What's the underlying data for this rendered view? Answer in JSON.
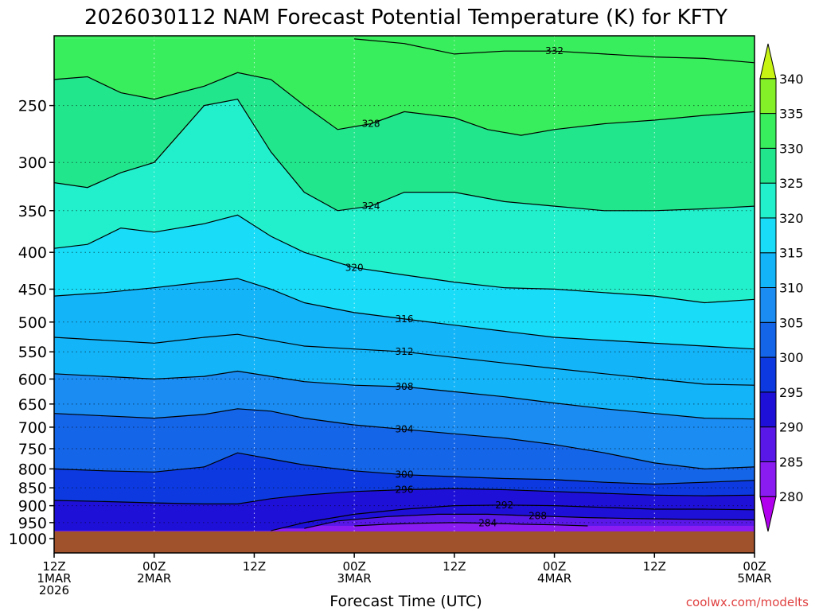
{
  "chart_data": {
    "type": "heatmap",
    "title": "2026030112 NAM Forecast Potential Temperature (K) for KFTY",
    "xlabel": "Forecast Time (UTC)",
    "ylabel": "",
    "credit": "coolwx.com/modelts",
    "y_scale": "log",
    "ylim": [
      1000,
      200
    ],
    "y_ticks": [
      250,
      300,
      350,
      400,
      450,
      500,
      550,
      600,
      650,
      700,
      750,
      800,
      850,
      900,
      950,
      1000
    ],
    "xlim": [
      "2026-03-01 12Z",
      "2026-03-05 00Z"
    ],
    "x_ticks": [
      {
        "hour": 0,
        "line1": "12Z",
        "line2": "1MAR",
        "line3": "2026"
      },
      {
        "hour": 12,
        "line1": "00Z",
        "line2": "2MAR",
        "line3": ""
      },
      {
        "hour": 24,
        "line1": "12Z",
        "line2": "",
        "line3": ""
      },
      {
        "hour": 36,
        "line1": "00Z",
        "line2": "3MAR",
        "line3": ""
      },
      {
        "hour": 48,
        "line1": "12Z",
        "line2": "",
        "line3": ""
      },
      {
        "hour": 60,
        "line1": "00Z",
        "line2": "4MAR",
        "line3": ""
      },
      {
        "hour": 72,
        "line1": "12Z",
        "line2": "",
        "line3": ""
      },
      {
        "hour": 84,
        "line1": "00Z",
        "line2": "5MAR",
        "line3": ""
      }
    ],
    "colorbar": {
      "levels": [
        280,
        285,
        290,
        295,
        300,
        305,
        310,
        315,
        320,
        325,
        330,
        335,
        340
      ],
      "colors": [
        "#b000ee",
        "#8a1cf2",
        "#5a18e8",
        "#1f10d8",
        "#0c3ae0",
        "#1565e8",
        "#1a8cf2",
        "#14b4f8",
        "#18dcf8",
        "#22f0cc",
        "#22e68c",
        "#38ee5c",
        "#84f028",
        "#c8f414"
      ]
    },
    "grid": true,
    "contours": [
      {
        "level": 284,
        "label": "284",
        "points": [
          [
            36,
            960
          ],
          [
            40,
            955
          ],
          [
            44,
            952
          ],
          [
            48,
            950
          ],
          [
            52,
            952
          ],
          [
            56,
            955
          ],
          [
            60,
            957
          ],
          [
            64,
            960
          ]
        ]
      },
      {
        "level": 288,
        "label": "288",
        "points": [
          [
            30,
            968
          ],
          [
            34,
            945
          ],
          [
            40,
            932
          ],
          [
            46,
            925
          ],
          [
            52,
            925
          ],
          [
            58,
            930
          ],
          [
            64,
            935
          ],
          [
            70,
            938
          ],
          [
            76,
            940
          ],
          [
            84,
            942
          ]
        ]
      },
      {
        "level": 292,
        "label": "292",
        "points": [
          [
            26,
            975
          ],
          [
            30,
            950
          ],
          [
            36,
            925
          ],
          [
            42,
            910
          ],
          [
            48,
            900
          ],
          [
            54,
            898
          ],
          [
            60,
            900
          ],
          [
            66,
            905
          ],
          [
            72,
            910
          ],
          [
            78,
            910
          ],
          [
            84,
            912
          ]
        ]
      },
      {
        "level": 296,
        "label": "296",
        "points": [
          [
            0,
            885
          ],
          [
            6,
            888
          ],
          [
            12,
            892
          ],
          [
            18,
            895
          ],
          [
            22,
            895
          ],
          [
            26,
            880
          ],
          [
            30,
            870
          ],
          [
            36,
            860
          ],
          [
            42,
            855
          ],
          [
            48,
            852
          ],
          [
            54,
            855
          ],
          [
            60,
            860
          ],
          [
            66,
            865
          ],
          [
            72,
            870
          ],
          [
            78,
            872
          ],
          [
            84,
            870
          ]
        ]
      },
      {
        "level": 300,
        "label": "300",
        "points": [
          [
            0,
            800
          ],
          [
            6,
            805
          ],
          [
            12,
            808
          ],
          [
            18,
            795
          ],
          [
            22,
            760
          ],
          [
            26,
            775
          ],
          [
            30,
            790
          ],
          [
            36,
            805
          ],
          [
            42,
            815
          ],
          [
            48,
            820
          ],
          [
            54,
            825
          ],
          [
            60,
            828
          ],
          [
            66,
            835
          ],
          [
            72,
            840
          ],
          [
            78,
            835
          ],
          [
            84,
            830
          ]
        ]
      },
      {
        "level": 304,
        "label": "304",
        "points": [
          [
            0,
            670
          ],
          [
            6,
            675
          ],
          [
            12,
            680
          ],
          [
            18,
            672
          ],
          [
            22,
            660
          ],
          [
            26,
            665
          ],
          [
            30,
            680
          ],
          [
            36,
            695
          ],
          [
            42,
            705
          ],
          [
            48,
            715
          ],
          [
            54,
            725
          ],
          [
            60,
            740
          ],
          [
            66,
            760
          ],
          [
            72,
            785
          ],
          [
            78,
            800
          ],
          [
            84,
            795
          ]
        ]
      },
      {
        "level": 308,
        "label": "308",
        "points": [
          [
            0,
            590
          ],
          [
            6,
            595
          ],
          [
            12,
            600
          ],
          [
            18,
            595
          ],
          [
            22,
            585
          ],
          [
            26,
            595
          ],
          [
            30,
            605
          ],
          [
            36,
            612
          ],
          [
            42,
            615
          ],
          [
            48,
            625
          ],
          [
            54,
            635
          ],
          [
            60,
            648
          ],
          [
            66,
            660
          ],
          [
            72,
            670
          ],
          [
            78,
            680
          ],
          [
            84,
            682
          ]
        ]
      },
      {
        "level": 312,
        "label": "312",
        "points": [
          [
            0,
            525
          ],
          [
            6,
            530
          ],
          [
            12,
            535
          ],
          [
            18,
            525
          ],
          [
            22,
            520
          ],
          [
            26,
            530
          ],
          [
            30,
            540
          ],
          [
            36,
            545
          ],
          [
            42,
            550
          ],
          [
            48,
            560
          ],
          [
            54,
            570
          ],
          [
            60,
            580
          ],
          [
            66,
            590
          ],
          [
            72,
            600
          ],
          [
            78,
            610
          ],
          [
            84,
            612
          ]
        ]
      },
      {
        "level": 316,
        "label": "316",
        "points": [
          [
            0,
            460
          ],
          [
            6,
            455
          ],
          [
            12,
            448
          ],
          [
            18,
            440
          ],
          [
            22,
            435
          ],
          [
            26,
            450
          ],
          [
            30,
            470
          ],
          [
            36,
            485
          ],
          [
            42,
            495
          ],
          [
            48,
            505
          ],
          [
            54,
            515
          ],
          [
            60,
            525
          ],
          [
            66,
            530
          ],
          [
            72,
            535
          ],
          [
            78,
            540
          ],
          [
            84,
            545
          ]
        ]
      },
      {
        "level": 320,
        "label": "320",
        "points": [
          [
            0,
            395
          ],
          [
            4,
            390
          ],
          [
            8,
            370
          ],
          [
            12,
            375
          ],
          [
            18,
            365
          ],
          [
            22,
            355
          ],
          [
            26,
            380
          ],
          [
            30,
            400
          ],
          [
            36,
            420
          ],
          [
            42,
            430
          ],
          [
            48,
            440
          ],
          [
            54,
            448
          ],
          [
            60,
            450
          ],
          [
            66,
            455
          ],
          [
            72,
            460
          ],
          [
            78,
            470
          ],
          [
            84,
            465
          ]
        ]
      },
      {
        "level": 324,
        "label": "324",
        "points": [
          [
            0,
            320
          ],
          [
            4,
            325
          ],
          [
            8,
            310
          ],
          [
            12,
            300
          ],
          [
            18,
            250
          ],
          [
            22,
            245
          ],
          [
            26,
            290
          ],
          [
            30,
            330
          ],
          [
            34,
            350
          ],
          [
            38,
            345
          ],
          [
            42,
            330
          ],
          [
            48,
            330
          ],
          [
            54,
            340
          ],
          [
            60,
            345
          ],
          [
            66,
            350
          ],
          [
            72,
            350
          ],
          [
            78,
            348
          ],
          [
            84,
            345
          ]
        ]
      },
      {
        "level": 328,
        "label": "328",
        "points": [
          [
            0,
            230
          ],
          [
            4,
            228
          ],
          [
            8,
            240
          ],
          [
            12,
            245
          ],
          [
            18,
            235
          ],
          [
            22,
            225
          ],
          [
            26,
            230
          ],
          [
            30,
            250
          ],
          [
            34,
            270
          ],
          [
            38,
            265
          ],
          [
            42,
            255
          ],
          [
            48,
            260
          ],
          [
            52,
            270
          ],
          [
            56,
            275
          ],
          [
            60,
            270
          ],
          [
            66,
            265
          ],
          [
            72,
            262
          ],
          [
            78,
            258
          ],
          [
            84,
            255
          ]
        ]
      },
      {
        "level": 332,
        "label": "332",
        "points": [
          [
            36,
            202
          ],
          [
            42,
            205
          ],
          [
            48,
            212
          ],
          [
            54,
            210
          ],
          [
            60,
            210
          ],
          [
            66,
            212
          ],
          [
            72,
            214
          ],
          [
            78,
            215
          ],
          [
            84,
            218
          ]
        ]
      }
    ]
  }
}
